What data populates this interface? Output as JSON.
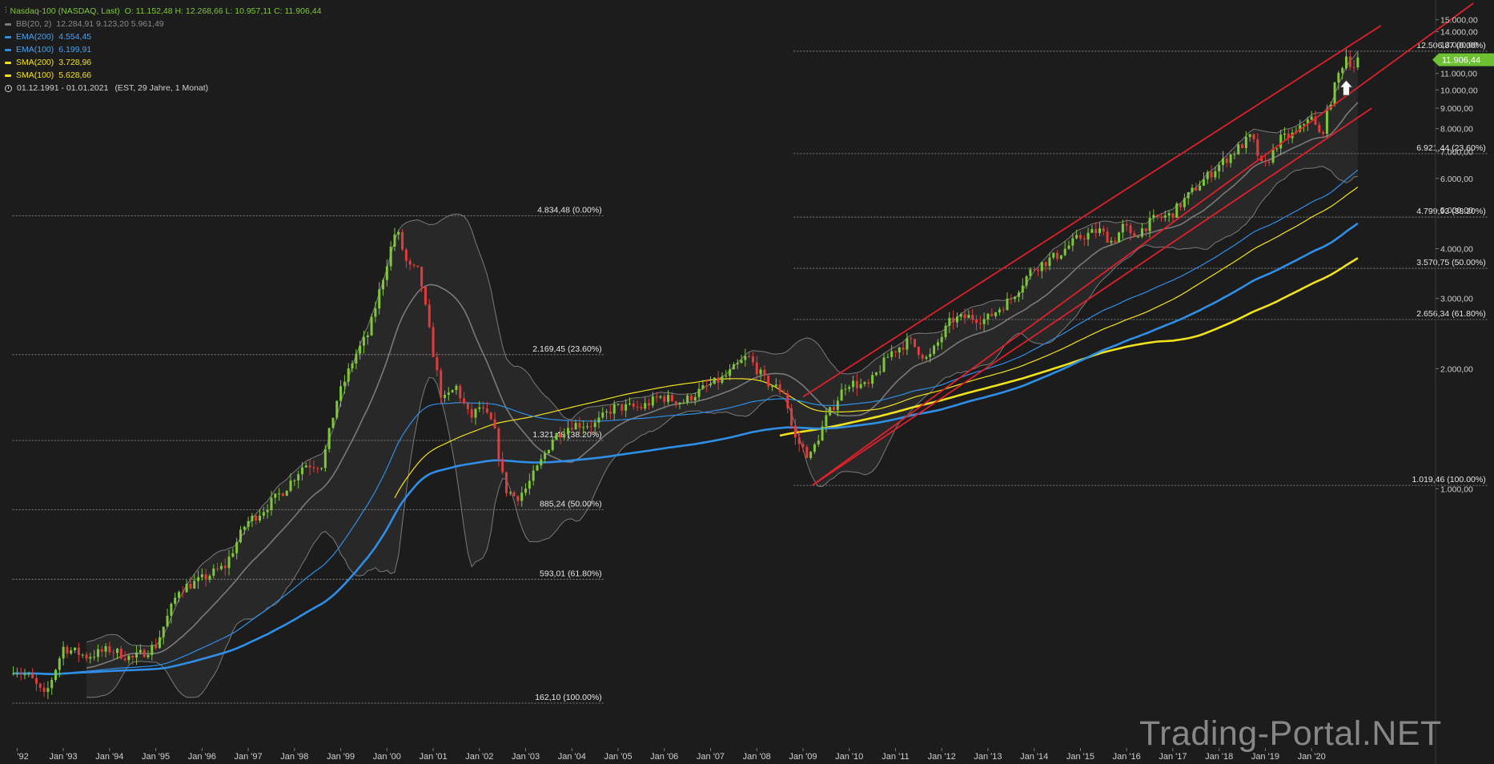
{
  "legend": {
    "instrument": "Nasdaq-100 (NASDAQ, Last)",
    "ohlc": "O: 11.152,48  H: 12.268,66  L: 10.957,11  C: 11.906,44",
    "indicators": [
      {
        "label": "BB(20, 2)",
        "values": "12.284,91  9.123,20  5.961,49",
        "color": "#7a7a7a",
        "text_color": "#8a8a8a"
      },
      {
        "label": "EMA(200)",
        "values": "4.554,45",
        "color": "#2f8fe8",
        "text_color": "#4aa0f0"
      },
      {
        "label": "EMA(100)",
        "values": "6.199,91",
        "color": "#2f8fe8",
        "text_color": "#4aa0f0"
      },
      {
        "label": "SMA(200)",
        "values": "3.728,96",
        "color": "#f2e21b",
        "text_color": "#f2e21b"
      },
      {
        "label": "SMA(100)",
        "values": "5.628,66",
        "color": "#f2e21b",
        "text_color": "#f2e21b"
      }
    ],
    "period": "01.12.1991 - 01.01.2021",
    "period_info": "(EST, 29 Jahre, 1 Monat)"
  },
  "watermark": "Trading-Portal.NET",
  "chart_data": {
    "type": "candlestick",
    "interval": "monthly",
    "scale": "log",
    "ylim": [
      290,
      16200
    ],
    "last_price": {
      "value": 11906.44,
      "label": "11.906,44",
      "color": "#6ec133"
    },
    "y_ticks": [
      {
        "value": 1000,
        "label": "1.000,00"
      },
      {
        "value": 2000,
        "label": "2.000,00"
      },
      {
        "value": 3000,
        "label": "3.000,00"
      },
      {
        "value": 4000,
        "label": "4.000,00"
      },
      {
        "value": 5000,
        "label": "5.000,00"
      },
      {
        "value": 6000,
        "label": "6.000,00"
      },
      {
        "value": 7000,
        "label": "7.000,00"
      },
      {
        "value": 8000,
        "label": "8.000,00"
      },
      {
        "value": 9000,
        "label": "9.000,00"
      },
      {
        "value": 10000,
        "label": "10.000,00"
      },
      {
        "value": 11000,
        "label": "11.000,00"
      },
      {
        "value": 12000,
        "label": "12.000,00"
      },
      {
        "value": 13000,
        "label": "13.000,00"
      },
      {
        "value": 14000,
        "label": "14.000,00"
      },
      {
        "value": 15000,
        "label": "15.000,00"
      }
    ],
    "x_ticks": [
      {
        "year": 1992,
        "label": "'92"
      },
      {
        "year": 1993,
        "label": "Jan '93"
      },
      {
        "year": 1994,
        "label": "Jan '94"
      },
      {
        "year": 1995,
        "label": "Jan '95"
      },
      {
        "year": 1996,
        "label": "Jan '96"
      },
      {
        "year": 1997,
        "label": "Jan '97"
      },
      {
        "year": 1998,
        "label": "Jan '98"
      },
      {
        "year": 1999,
        "label": "Jan '99"
      },
      {
        "year": 2000,
        "label": "Jan '00"
      },
      {
        "year": 2001,
        "label": "Jan '01"
      },
      {
        "year": 2002,
        "label": "Jan '02"
      },
      {
        "year": 2003,
        "label": "Jan '03"
      },
      {
        "year": 2004,
        "label": "Jan '04"
      },
      {
        "year": 2005,
        "label": "Jan '05"
      },
      {
        "year": 2006,
        "label": "Jan '06"
      },
      {
        "year": 2007,
        "label": "Jan '07"
      },
      {
        "year": 2008,
        "label": "Jan '08"
      },
      {
        "year": 2009,
        "label": "Jan '09"
      },
      {
        "year": 2010,
        "label": "Jan '10"
      },
      {
        "year": 2011,
        "label": "Jan '11"
      },
      {
        "year": 2012,
        "label": "Jan '12"
      },
      {
        "year": 2013,
        "label": "Jan '13"
      },
      {
        "year": 2014,
        "label": "Jan '14"
      },
      {
        "year": 2015,
        "label": "Jan '15"
      },
      {
        "year": 2016,
        "label": "Jan '16"
      },
      {
        "year": 2017,
        "label": "Jan '17"
      },
      {
        "year": 2018,
        "label": "Jan '18"
      },
      {
        "year": 2019,
        "label": "Jan '19"
      },
      {
        "year": 2020,
        "label": "Jan '20"
      }
    ],
    "close_path": [
      [
        1991.92,
        355
      ],
      [
        1992.3,
        335
      ],
      [
        1992.6,
        300
      ],
      [
        1993.0,
        400
      ],
      [
        1993.5,
        380
      ],
      [
        1994.0,
        395
      ],
      [
        1994.5,
        375
      ],
      [
        1995.0,
        405
      ],
      [
        1995.5,
        560
      ],
      [
        1995.9,
        585
      ],
      [
        1996.5,
        640
      ],
      [
        1996.95,
        820
      ],
      [
        1997.3,
        880
      ],
      [
        1997.8,
        1000
      ],
      [
        1998.2,
        1150
      ],
      [
        1998.6,
        1150
      ],
      [
        1998.9,
        1650
      ],
      [
        1999.3,
        2150
      ],
      [
        1999.6,
        2450
      ],
      [
        2000.0,
        3700
      ],
      [
        2000.2,
        4500
      ],
      [
        2000.45,
        3600
      ],
      [
        2000.7,
        3500
      ],
      [
        2000.95,
        2350
      ],
      [
        2001.2,
        1650
      ],
      [
        2001.5,
        1800
      ],
      [
        2001.8,
        1500
      ],
      [
        2002.0,
        1600
      ],
      [
        2002.3,
        1450
      ],
      [
        2002.55,
        1000
      ],
      [
        2002.8,
        950
      ],
      [
        2003.0,
        1000
      ],
      [
        2003.3,
        1150
      ],
      [
        2003.6,
        1350
      ],
      [
        2004.0,
        1450
      ],
      [
        2004.5,
        1450
      ],
      [
        2004.9,
        1600
      ],
      [
        2005.5,
        1600
      ],
      [
        2005.9,
        1700
      ],
      [
        2006.4,
        1650
      ],
      [
        2006.9,
        1800
      ],
      [
        2007.3,
        1900
      ],
      [
        2007.8,
        2150
      ],
      [
        2008.2,
        1850
      ],
      [
        2008.6,
        1750
      ],
      [
        2008.8,
        1350
      ],
      [
        2009.15,
        1200
      ],
      [
        2009.5,
        1500
      ],
      [
        2009.95,
        1850
      ],
      [
        2010.4,
        1800
      ],
      [
        2010.9,
        2200
      ],
      [
        2011.3,
        2350
      ],
      [
        2011.7,
        2100
      ],
      [
        2012.2,
        2650
      ],
      [
        2012.6,
        2700
      ],
      [
        2012.95,
        2650
      ],
      [
        2013.5,
        3000
      ],
      [
        2013.95,
        3550
      ],
      [
        2014.5,
        3850
      ],
      [
        2014.95,
        4250
      ],
      [
        2015.4,
        4450
      ],
      [
        2015.7,
        4150
      ],
      [
        2015.95,
        4600
      ],
      [
        2016.1,
        4250
      ],
      [
        2016.6,
        4750
      ],
      [
        2016.95,
        4850
      ],
      [
        2017.5,
        5700
      ],
      [
        2017.95,
        6400
      ],
      [
        2018.7,
        7650
      ],
      [
        2018.95,
        6300
      ],
      [
        2019.3,
        7500
      ],
      [
        2019.7,
        7800
      ],
      [
        2019.95,
        8700
      ],
      [
        2020.2,
        7600
      ],
      [
        2020.4,
        9300
      ],
      [
        2020.6,
        11100
      ],
      [
        2020.75,
        12200
      ],
      [
        2020.9,
        11400
      ],
      [
        2021.0,
        11906
      ]
    ],
    "series": [
      {
        "name": "BB(20, 2)",
        "color": "#8a8a8a"
      },
      {
        "name": "EMA(200)",
        "color": "#2f8fe8"
      },
      {
        "name": "EMA(100)",
        "color": "#2f8fe8"
      },
      {
        "name": "SMA(200)",
        "color": "#f2e21b"
      },
      {
        "name": "SMA(100)",
        "color": "#f2e21b"
      }
    ],
    "fib_sets": [
      {
        "x_range": [
          1991.9,
          2004.7
        ],
        "levels": [
          {
            "value": 4834.48,
            "label": "4.834,48 (0.00%)"
          },
          {
            "value": 2169.45,
            "label": "2.169,45 (23.60%)"
          },
          {
            "value": 1321.48,
            "label": "1.321,48 (38.20%)"
          },
          {
            "value": 885.24,
            "label": "885,24 (50.00%)"
          },
          {
            "value": 593.01,
            "label": "593,01 (61.80%)"
          },
          {
            "value": 162.1,
            "label": "162,10 (100.00%)"
          }
        ]
      },
      {
        "x_range": [
          2008.8,
          2023.82
        ],
        "levels": [
          {
            "value": 12506.87,
            "label": "12.506,87 (0.00%)"
          },
          {
            "value": 6921.44,
            "label": "6.921,44 (23.60%)"
          },
          {
            "value": 4799.93,
            "label": "4.799,93 (38.20%)"
          },
          {
            "value": 3570.75,
            "label": "3.570,75 (50.00%)"
          },
          {
            "value": 2656.34,
            "label": "2.656,34 (61.80%)"
          },
          {
            "value": 1019.46,
            "label": "1.019,46 (100.00%)"
          }
        ]
      }
    ],
    "trend_channel": {
      "color": "#e0202a",
      "upper": [
        [
          2009.0,
          1700
        ],
        [
          2023.5,
          16500
        ]
      ],
      "lower": [
        [
          2009.2,
          1019.46
        ],
        [
          2023.5,
          16500
        ]
      ],
      "lower_end": [
        [
          2009.2,
          1019.46
        ],
        [
          2021.3,
          9000
        ]
      ],
      "upper_line": [
        [
          2009.0,
          1700
        ],
        [
          2021.5,
          14500
        ]
      ]
    },
    "marker": {
      "type": "arrow-up",
      "x": 2020.75,
      "value": 10100
    }
  }
}
